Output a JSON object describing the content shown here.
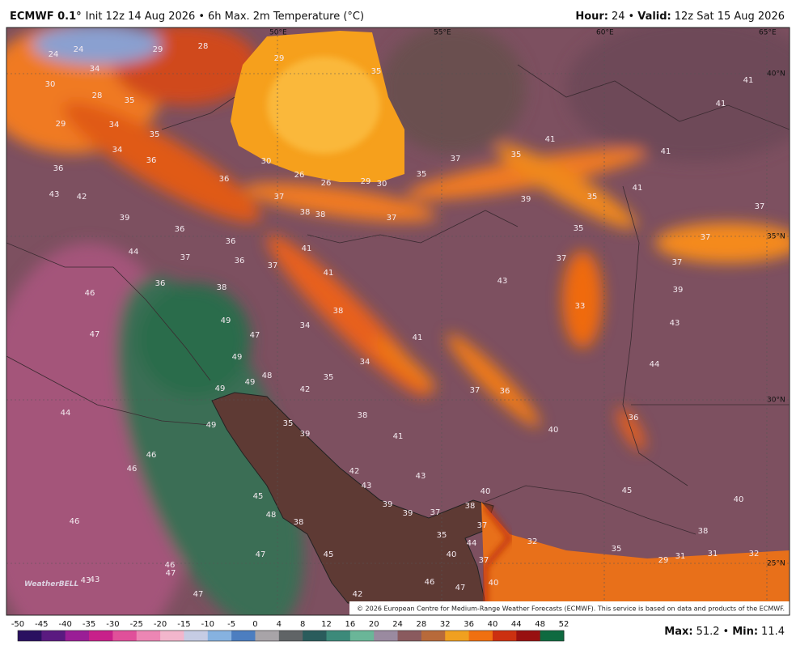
{
  "header": {
    "model": "ECMWF 0.1°",
    "init": "Init 12z 14 Aug 2026",
    "separator": "•",
    "product": "6h Max. 2m Temperature (°C)",
    "hour_label": "Hour:",
    "hour": 24,
    "valid_label": "Valid:",
    "valid": "12z Sat 15 Aug 2026"
  },
  "map": {
    "longitude_labels": [
      "50°E",
      "55°E",
      "60°E",
      "65°E"
    ],
    "latitude_labels": [
      "40°N",
      "35°N",
      "30°N",
      "25°N"
    ],
    "temperature_labels": [
      24,
      24,
      29,
      28,
      29,
      35,
      34,
      30,
      28,
      35,
      29,
      34,
      35,
      34,
      36,
      36,
      30,
      26,
      26,
      29,
      30,
      35,
      37,
      35,
      41,
      41,
      41,
      41,
      43,
      42,
      36,
      37,
      38,
      38,
      37,
      39,
      35,
      41,
      37,
      39,
      36,
      36,
      35,
      37,
      44,
      37,
      36,
      37,
      41,
      41,
      37,
      37,
      36,
      38,
      43,
      39,
      46,
      38,
      33,
      43,
      49,
      47,
      34,
      41,
      47,
      49,
      34,
      44,
      48,
      49,
      35,
      42,
      37,
      36,
      49,
      44,
      38,
      36,
      49,
      35,
      39,
      41,
      40,
      46,
      46,
      42,
      43,
      43,
      45,
      40,
      40,
      45,
      39,
      39,
      37,
      38,
      46,
      48,
      38,
      37,
      35,
      32,
      44,
      38,
      35,
      40,
      29,
      31,
      31,
      32,
      47,
      45,
      37,
      46,
      47,
      43,
      43,
      46,
      47,
      40,
      42,
      47
    ],
    "copyright": "© 2026 European Centre for Medium-Range Weather Forecasts (ECMWF). This service is based on data and products of the ECMWF.",
    "logo": "WeatherBELL"
  },
  "colorbar": {
    "ticks": [
      -50,
      -45,
      -40,
      -35,
      -30,
      -25,
      -20,
      -15,
      -10,
      -5,
      0,
      4,
      8,
      12,
      16,
      20,
      24,
      28,
      32,
      36,
      40,
      44,
      48,
      52
    ]
  },
  "footer": {
    "max_label": "Max:",
    "max": 51.2,
    "separator": "•",
    "min_label": "Min:",
    "min": 11.4
  }
}
